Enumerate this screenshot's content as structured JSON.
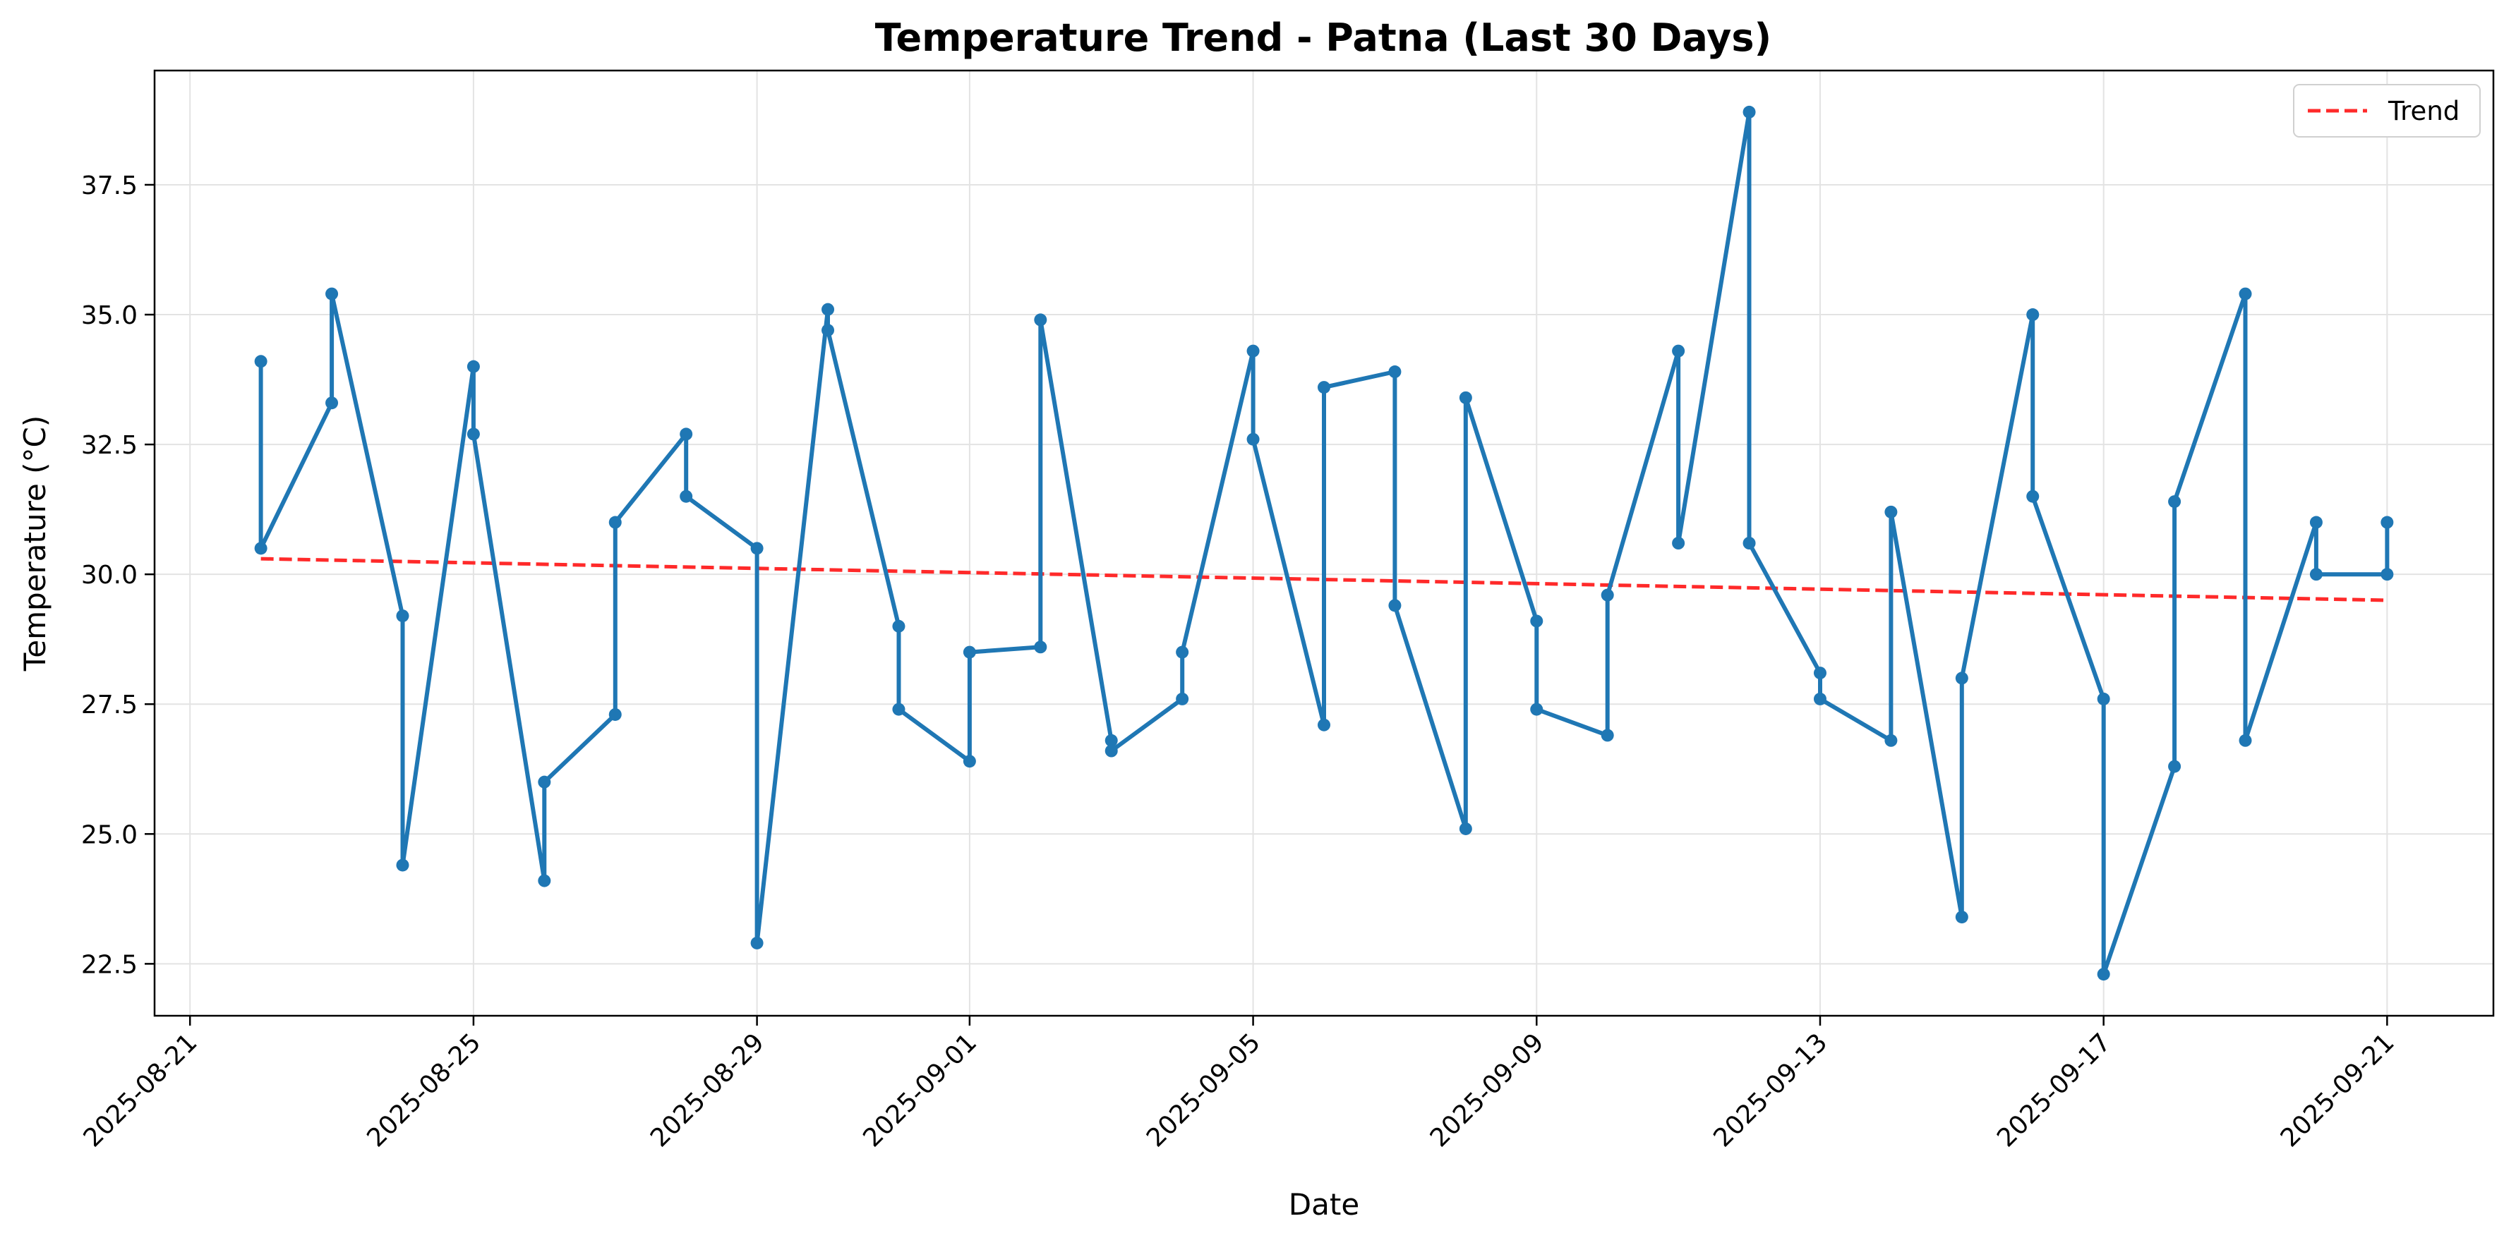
{
  "chart_data": {
    "type": "line",
    "title": "Temperature Trend - Patna (Last 30 Days)",
    "xlabel": "Date",
    "ylabel": "Temperature (°C)",
    "xlim": [
      "2025-08-20T12:00",
      "2025-09-22T12:00"
    ],
    "ylim": [
      21.5,
      39.7
    ],
    "x_ticks": [
      "2025-08-21",
      "2025-08-25",
      "2025-08-29",
      "2025-09-01",
      "2025-09-05",
      "2025-09-09",
      "2025-09-13",
      "2025-09-17",
      "2025-09-21"
    ],
    "y_ticks": [
      "22.5",
      "25.0",
      "27.5",
      "30.0",
      "32.5",
      "35.0",
      "37.5"
    ],
    "grid": true,
    "legend": {
      "position": "top-right",
      "entries": [
        "Trend"
      ]
    },
    "series": [
      {
        "name": "",
        "color": "#1f77b4",
        "marker": "circle",
        "x": [
          "2025-08-22",
          "2025-08-22",
          "2025-08-23",
          "2025-08-23",
          "2025-08-24",
          "2025-08-24",
          "2025-08-25",
          "2025-08-25",
          "2025-08-26",
          "2025-08-26",
          "2025-08-27",
          "2025-08-27",
          "2025-08-28",
          "2025-08-28",
          "2025-08-29",
          "2025-08-29",
          "2025-08-30",
          "2025-08-30",
          "2025-08-31",
          "2025-08-31",
          "2025-09-01",
          "2025-09-01",
          "2025-09-02",
          "2025-09-02",
          "2025-09-03",
          "2025-09-03",
          "2025-09-04",
          "2025-09-04",
          "2025-09-05",
          "2025-09-05",
          "2025-09-06",
          "2025-09-06",
          "2025-09-07",
          "2025-09-07",
          "2025-09-08",
          "2025-09-08",
          "2025-09-09",
          "2025-09-09",
          "2025-09-10",
          "2025-09-10",
          "2025-09-11",
          "2025-09-11",
          "2025-09-12",
          "2025-09-12",
          "2025-09-13",
          "2025-09-13",
          "2025-09-14",
          "2025-09-14",
          "2025-09-15",
          "2025-09-15",
          "2025-09-16",
          "2025-09-16",
          "2025-09-17",
          "2025-09-17",
          "2025-09-18",
          "2025-09-18",
          "2025-09-19",
          "2025-09-19",
          "2025-09-20",
          "2025-09-20",
          "2025-09-21",
          "2025-09-21"
        ],
        "y": [
          34.1,
          30.5,
          33.3,
          35.4,
          29.2,
          24.4,
          34.0,
          32.7,
          24.1,
          26.0,
          27.3,
          31.0,
          32.7,
          31.5,
          30.5,
          22.9,
          35.1,
          34.7,
          29.0,
          27.4,
          26.4,
          28.5,
          28.6,
          34.9,
          26.8,
          26.6,
          27.6,
          28.5,
          34.3,
          32.6,
          27.1,
          33.6,
          33.9,
          29.4,
          25.1,
          33.4,
          29.1,
          27.4,
          26.9,
          29.6,
          34.3,
          30.6,
          38.9,
          30.6,
          28.1,
          27.6,
          26.8,
          31.2,
          23.4,
          28.0,
          35.0,
          31.5,
          27.6,
          22.3,
          26.3,
          31.4,
          35.4,
          26.8,
          31.0,
          30.0,
          30.0,
          31.0
        ]
      },
      {
        "name": "Trend",
        "color": "#ff2a2a",
        "style": "dashed",
        "x": [
          "2025-08-22",
          "2025-09-21"
        ],
        "y": [
          30.3,
          29.5
        ]
      }
    ]
  }
}
